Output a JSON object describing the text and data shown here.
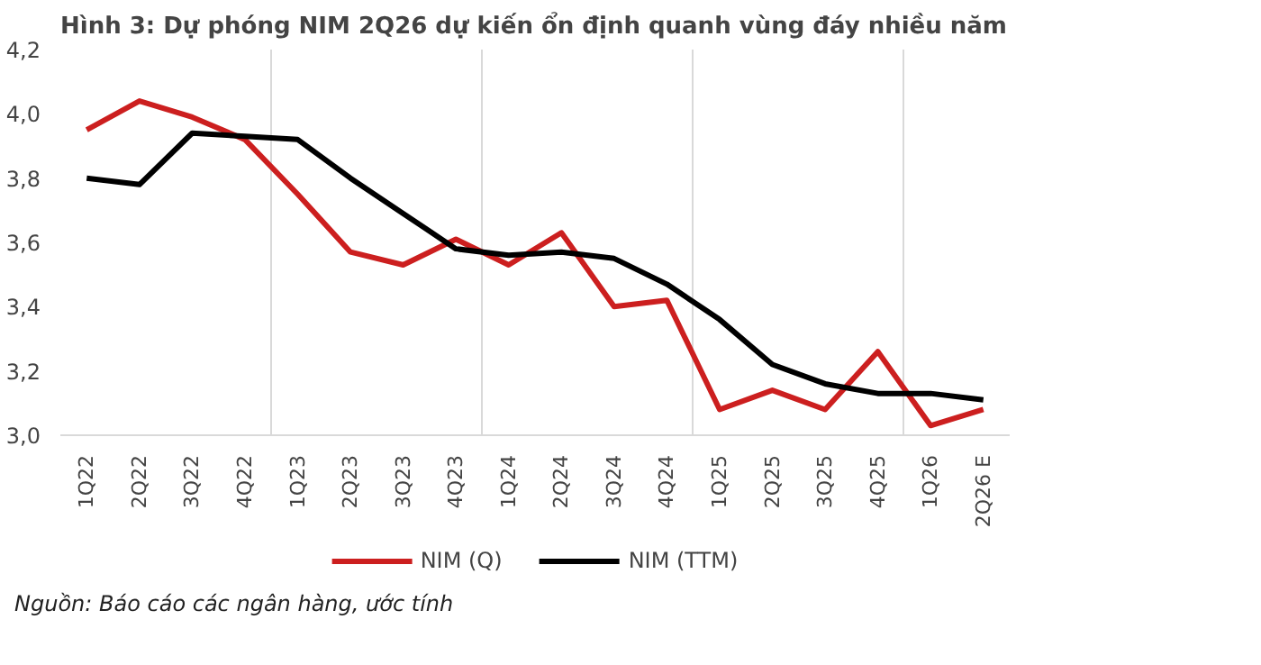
{
  "chart_data": {
    "type": "line",
    "title": "Hình 3: Dự phóng NIM 2Q26 dự kiến ổn định quanh vùng đáy nhiều năm",
    "categories": [
      "1Q22",
      "2Q22",
      "3Q22",
      "4Q22",
      "1Q23",
      "2Q23",
      "3Q23",
      "4Q23",
      "1Q24",
      "2Q24",
      "3Q24",
      "4Q24",
      "1Q25",
      "2Q25",
      "3Q25",
      "4Q25",
      "1Q26",
      "2Q26 E"
    ],
    "series": [
      {
        "name": "NIM (Q)",
        "color": "#cc1f1f",
        "values": [
          3.95,
          4.04,
          3.99,
          3.92,
          3.75,
          3.57,
          3.53,
          3.61,
          3.53,
          3.63,
          3.4,
          3.42,
          3.08,
          3.14,
          3.08,
          3.26,
          3.03,
          3.08
        ]
      },
      {
        "name": "NIM (TTM)",
        "color": "#000000",
        "values": [
          3.8,
          3.78,
          3.94,
          3.93,
          3.92,
          3.8,
          3.69,
          3.58,
          3.56,
          3.57,
          3.55,
          3.47,
          3.36,
          3.22,
          3.16,
          3.13,
          3.13,
          3.11
        ]
      }
    ],
    "ylim": [
      3.0,
      4.2
    ],
    "yticks": [
      {
        "value": 3.0,
        "label": "3,0"
      },
      {
        "value": 3.2,
        "label": "3,2"
      },
      {
        "value": 3.4,
        "label": "3,4"
      },
      {
        "value": 3.6,
        "label": "3,6"
      },
      {
        "value": 3.8,
        "label": "3,8"
      },
      {
        "value": 4.0,
        "label": "4,0"
      },
      {
        "value": 4.2,
        "label": "4,2"
      }
    ],
    "grid": "x",
    "legend": "bottom",
    "marker": "none",
    "line_style": "solid",
    "annotations": [
      "Nguồn: Báo cáo các ngân hàng, ước tính"
    ]
  }
}
